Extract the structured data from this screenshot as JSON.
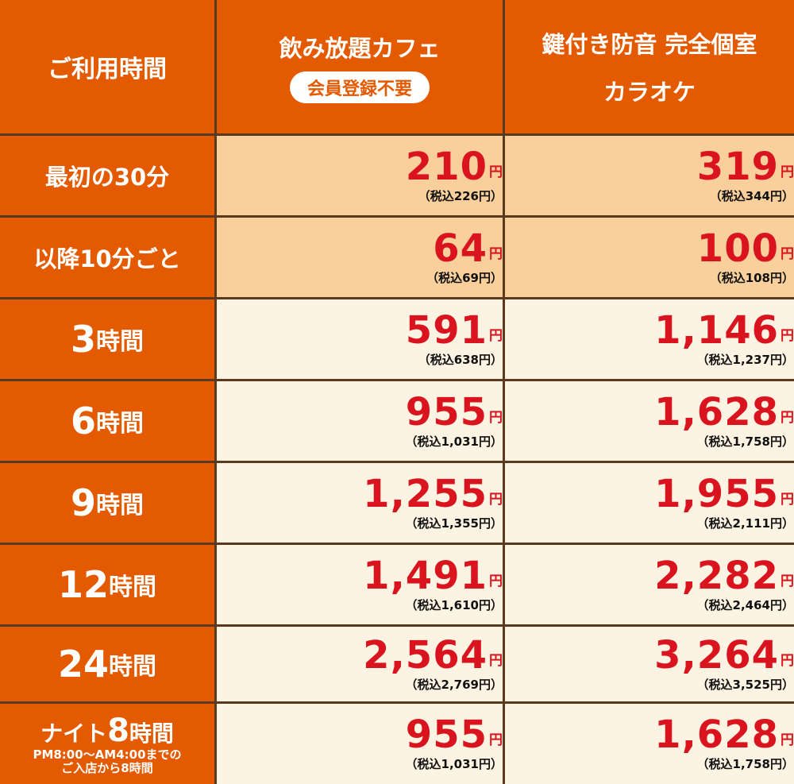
{
  "header": {
    "time_label": "ご利用時間",
    "col1_title": "飲み放題カフェ",
    "col1_badge": "会員登録不要",
    "col2_line1": "鍵付き防音 完全個室",
    "col2_line2": "カラオケ"
  },
  "yen_mark": "円",
  "rows": [
    {
      "label": "最初の30分",
      "c1": "210",
      "c1_tax": "（税込226円）",
      "c2": "319",
      "c2_tax": "（税込344円）"
    },
    {
      "label": "以降10分ごと",
      "c1": "64",
      "c1_tax": "（税込69円）",
      "c2": "100",
      "c2_tax": "（税込108円）"
    },
    {
      "label_num": "3",
      "label_unit": "時間",
      "c1": "591",
      "c1_tax": "（税込638円）",
      "c2": "1,146",
      "c2_tax": "（税込1,237円）"
    },
    {
      "label_num": "6",
      "label_unit": "時間",
      "c1": "955",
      "c1_tax": "（税込1,031円）",
      "c2": "1,628",
      "c2_tax": "（税込1,758円）"
    },
    {
      "label_num": "9",
      "label_unit": "時間",
      "c1": "1,255",
      "c1_tax": "（税込1,355円）",
      "c2": "1,955",
      "c2_tax": "（税込2,111円）"
    },
    {
      "label_num": "12",
      "label_unit": "時間",
      "c1": "1,491",
      "c1_tax": "（税込1,610円）",
      "c2": "2,282",
      "c2_tax": "（税込2,464円）"
    },
    {
      "label_num": "24",
      "label_unit": "時間",
      "c1": "2,564",
      "c1_tax": "（税込2,769円）",
      "c2": "3,264",
      "c2_tax": "（税込3,525円）"
    },
    {
      "label_pre": "ナイト",
      "label_num": "8",
      "label_unit": "時間",
      "label_note1": "PM8:00～AM4:00までの",
      "label_note2": "ご入店から8時間",
      "c1": "955",
      "c1_tax": "（税込1,031円）",
      "c2": "1,628",
      "c2_tax": "（税込1,758円）"
    }
  ],
  "colors": {
    "header_orange": "#e35a00",
    "peach": "#f9cf9b",
    "cream": "#fdf3e2",
    "price_red": "#d9141e"
  }
}
